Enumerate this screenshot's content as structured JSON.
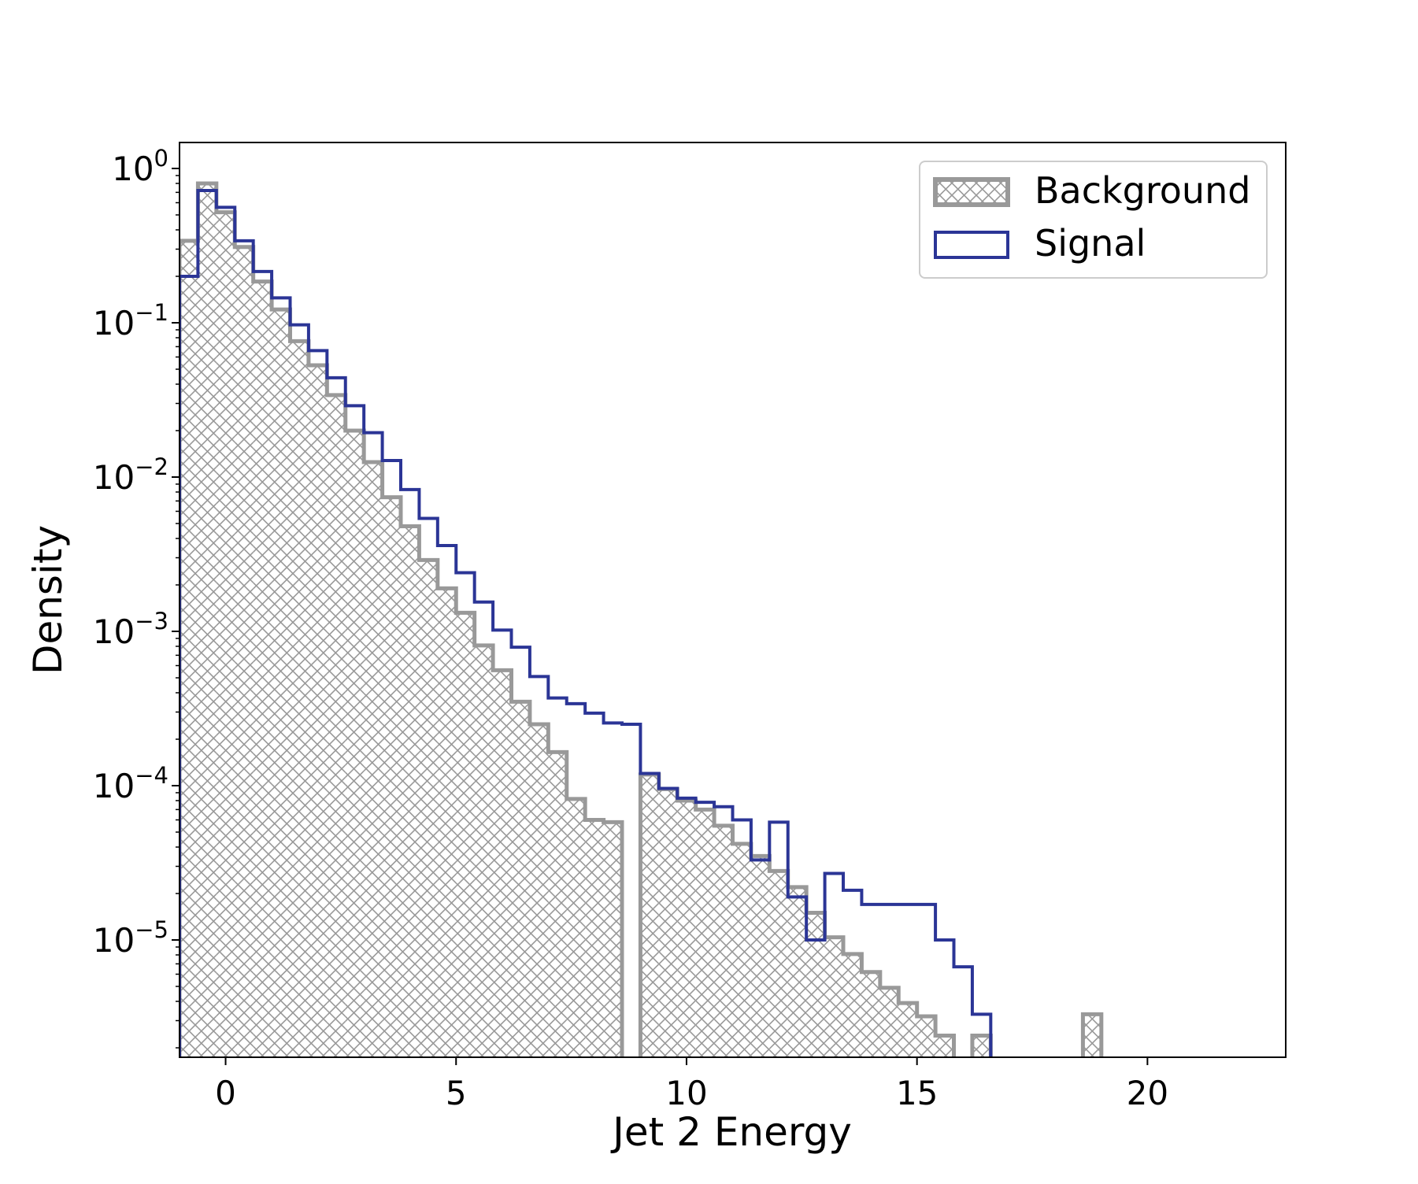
{
  "chart_data": {
    "type": "histogram",
    "xlabel": "Jet 2 Energy",
    "ylabel": "Density",
    "yscale": "log",
    "xlim": [
      -1.0,
      23.0
    ],
    "ylim": [
      1.8e-06,
      1.5
    ],
    "x_ticks": [
      0,
      5,
      10,
      15,
      20
    ],
    "x_tick_labels": [
      "0",
      "5",
      "10",
      "15",
      "20"
    ],
    "y_ticks": [
      {
        "value": 1,
        "base": "10",
        "exp": "0"
      },
      {
        "value": 0.1,
        "base": "10",
        "exp": "−1"
      },
      {
        "value": 0.01,
        "base": "10",
        "exp": "−2"
      },
      {
        "value": 0.001,
        "base": "10",
        "exp": "−3"
      },
      {
        "value": 0.0001,
        "base": "10",
        "exp": "−4"
      },
      {
        "value": 1e-05,
        "base": "10",
        "exp": "−5"
      }
    ],
    "grid": false,
    "legend_position": "top-right",
    "bin_edges_range": [
      -1.0,
      23.0
    ],
    "bin_count": 60,
    "series": [
      {
        "name": "Background",
        "style": "hatched",
        "color": "#999999",
        "values": [
          0.34,
          0.8,
          0.52,
          0.31,
          0.185,
          0.122,
          0.076,
          0.053,
          0.034,
          0.02,
          0.0125,
          0.0074,
          0.0048,
          0.0029,
          0.0019,
          0.00132,
          0.00081,
          0.00056,
          0.00035,
          0.00025,
          0.000165,
          8.2e-05,
          6e-05,
          5.8e-05,
          0.0,
          0.000118,
          9.5e-05,
          8e-05,
          7e-05,
          5.5e-05,
          4.2e-05,
          3.5e-05,
          2.8e-05,
          2.2e-05,
          1.5e-05,
          1.04e-05,
          8.1e-06,
          6.2e-06,
          4.9e-06,
          3.9e-06,
          3.2e-06,
          2.4e-06,
          0.0,
          2.4e-06,
          0.0,
          0.0,
          0.0,
          0.0,
          0.0,
          3.3e-06,
          0.0,
          0.0,
          0.0,
          0.0,
          0.0,
          0.0,
          0.0,
          0.0,
          0.0,
          0.0
        ]
      },
      {
        "name": "Signal",
        "style": "step",
        "color": "#2b3596",
        "values": [
          0.2,
          0.72,
          0.56,
          0.34,
          0.215,
          0.145,
          0.097,
          0.066,
          0.044,
          0.029,
          0.0194,
          0.0128,
          0.0083,
          0.0054,
          0.0036,
          0.0024,
          0.00155,
          0.00102,
          0.00079,
          0.00051,
          0.00037,
          0.00034,
          0.000295,
          0.000255,
          0.00025,
          0.00012,
          9.6e-05,
          8.3e-05,
          7.8e-05,
          7.3e-05,
          6e-05,
          3.3e-05,
          5.8e-05,
          1.9e-05,
          1e-05,
          2.7e-05,
          2.1e-05,
          1.7e-05,
          1.7e-05,
          1.7e-05,
          1.7e-05,
          1e-05,
          6.7e-06,
          3.3e-06,
          0.0,
          0.0,
          0.0,
          0.0,
          0.0,
          0.0,
          0.0,
          0.0,
          0.0,
          0.0,
          0.0,
          0.0,
          0.0,
          0.0,
          0.0,
          0.0
        ]
      }
    ]
  }
}
